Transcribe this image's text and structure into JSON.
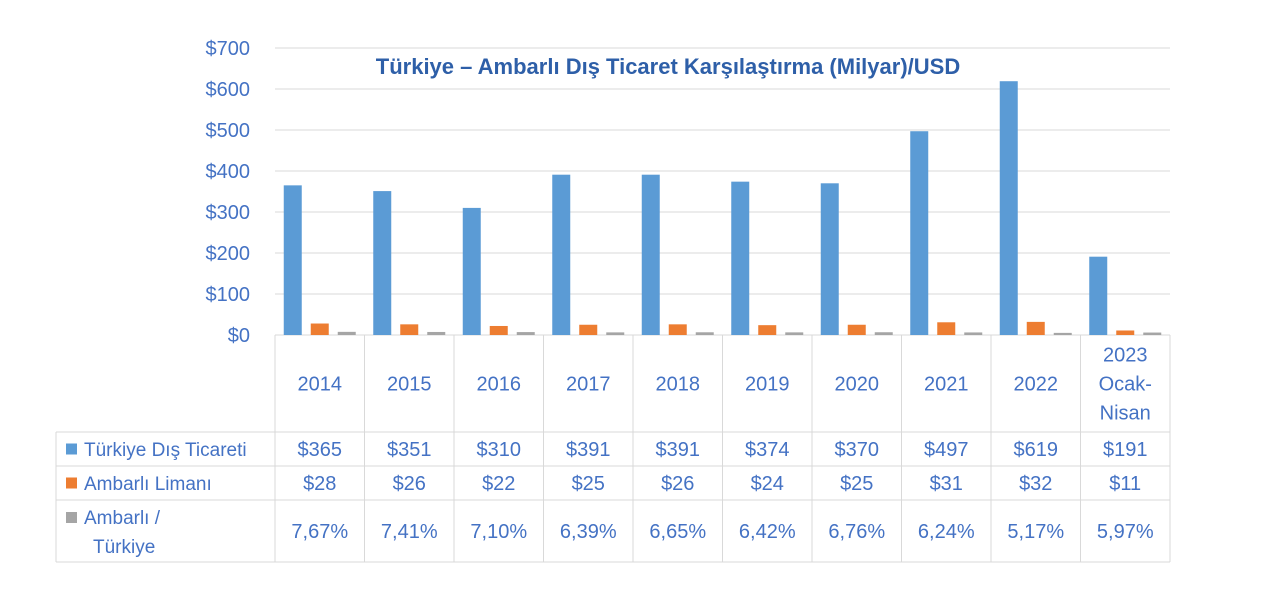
{
  "chart_data": {
    "type": "bar",
    "title": "Türkiye – Ambarlı Dış Ticaret Karşılaştırma (Milyar)/USD",
    "categories": [
      [
        "2014"
      ],
      [
        "2015"
      ],
      [
        "2016"
      ],
      [
        "2017"
      ],
      [
        "2018"
      ],
      [
        "2019"
      ],
      [
        "2020"
      ],
      [
        "2021"
      ],
      [
        "2022"
      ],
      [
        "2023",
        "Ocak-",
        "Nisan"
      ]
    ],
    "ylim": [
      0,
      700
    ],
    "yticks": [
      0,
      100,
      200,
      300,
      400,
      500,
      600,
      700
    ],
    "ytick_labels": [
      "$0",
      "$100",
      "$200",
      "$300",
      "$400",
      "$500",
      "$600",
      "$700"
    ],
    "grid": true,
    "series": [
      {
        "name": "Türkiye Dış Ticareti",
        "color": "#5b9bd5",
        "values": [
          365,
          351,
          310,
          391,
          391,
          374,
          370,
          497,
          619,
          191
        ],
        "labels": [
          "$365",
          "$351",
          "$310",
          "$391",
          "$391",
          "$374",
          "$370",
          "$497",
          "$619",
          "$191"
        ]
      },
      {
        "name": "Ambarlı Limanı",
        "color": "#ed7d31",
        "values": [
          28,
          26,
          22,
          25,
          26,
          24,
          25,
          31,
          32,
          11
        ],
        "labels": [
          "$28",
          "$26",
          "$22",
          "$25",
          "$26",
          "$24",
          "$25",
          "$31",
          "$32",
          "$11"
        ]
      },
      {
        "name": [
          "Ambarlı /",
          "Türkiye"
        ],
        "color": "#a5a5a5",
        "values": [
          7.67,
          7.41,
          7.1,
          6.39,
          6.65,
          6.42,
          6.76,
          6.24,
          5.17,
          5.97
        ],
        "labels": [
          "7,67%",
          "7,41%",
          "7,10%",
          "6,39%",
          "6,65%",
          "6,42%",
          "6,76%",
          "6,24%",
          "5,17%",
          "5,97%"
        ]
      }
    ],
    "legend": "table"
  }
}
